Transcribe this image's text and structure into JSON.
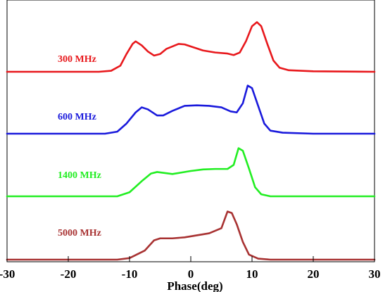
{
  "chart_data": {
    "type": "line",
    "xlabel": "Phase(deg)",
    "ylabel": "",
    "xlim": [
      -30,
      30
    ],
    "grid": false,
    "x_ticks": [
      -30,
      -20,
      -10,
      0,
      10,
      20,
      30
    ],
    "x_tick_labels": [
      "-30",
      "-20",
      "-10",
      "0",
      "10",
      "20",
      "30"
    ],
    "series": [
      {
        "name": "300 MHz",
        "color": "#e8181c",
        "points": [
          [
            -30,
            0.0
          ],
          [
            -15,
            0.0
          ],
          [
            -13,
            0.02
          ],
          [
            -11.5,
            0.12
          ],
          [
            -10.5,
            0.35
          ],
          [
            -9.5,
            0.55
          ],
          [
            -9,
            0.6
          ],
          [
            -8,
            0.52
          ],
          [
            -7,
            0.4
          ],
          [
            -6,
            0.32
          ],
          [
            -5,
            0.35
          ],
          [
            -4,
            0.45
          ],
          [
            -2,
            0.55
          ],
          [
            -1,
            0.54
          ],
          [
            0,
            0.5
          ],
          [
            2,
            0.42
          ],
          [
            4,
            0.38
          ],
          [
            6,
            0.36
          ],
          [
            7,
            0.33
          ],
          [
            8,
            0.38
          ],
          [
            9,
            0.6
          ],
          [
            10,
            0.9
          ],
          [
            10.8,
            0.98
          ],
          [
            11.5,
            0.9
          ],
          [
            12.5,
            0.55
          ],
          [
            13.5,
            0.22
          ],
          [
            14.5,
            0.08
          ],
          [
            16,
            0.03
          ],
          [
            20,
            0.01
          ],
          [
            30,
            0.0
          ]
        ]
      },
      {
        "name": "600 MHz",
        "color": "#1a1adc",
        "points": [
          [
            -30,
            0.0
          ],
          [
            -14,
            0.0
          ],
          [
            -12,
            0.04
          ],
          [
            -10.5,
            0.2
          ],
          [
            -9,
            0.42
          ],
          [
            -8,
            0.52
          ],
          [
            -7,
            0.48
          ],
          [
            -5.5,
            0.36
          ],
          [
            -4.5,
            0.36
          ],
          [
            -3,
            0.45
          ],
          [
            -1,
            0.55
          ],
          [
            1,
            0.56
          ],
          [
            3,
            0.55
          ],
          [
            5,
            0.52
          ],
          [
            6.5,
            0.44
          ],
          [
            7.5,
            0.42
          ],
          [
            8.5,
            0.6
          ],
          [
            9.3,
            0.95
          ],
          [
            10,
            0.9
          ],
          [
            11,
            0.55
          ],
          [
            12,
            0.2
          ],
          [
            13,
            0.06
          ],
          [
            15,
            0.02
          ],
          [
            20,
            0.0
          ],
          [
            30,
            0.0
          ]
        ]
      },
      {
        "name": "1400 MHz",
        "color": "#22ee22",
        "points": [
          [
            -30,
            0.0
          ],
          [
            -12,
            0.0
          ],
          [
            -10,
            0.08
          ],
          [
            -8,
            0.3
          ],
          [
            -6.5,
            0.45
          ],
          [
            -5.5,
            0.48
          ],
          [
            -3,
            0.44
          ],
          [
            0,
            0.5
          ],
          [
            2,
            0.53
          ],
          [
            4,
            0.54
          ],
          [
            6,
            0.54
          ],
          [
            7,
            0.62
          ],
          [
            7.8,
            0.95
          ],
          [
            8.5,
            0.9
          ],
          [
            9.5,
            0.55
          ],
          [
            10.5,
            0.18
          ],
          [
            11.5,
            0.04
          ],
          [
            13,
            0.0
          ],
          [
            30,
            0.0
          ]
        ]
      },
      {
        "name": "5000 MHz",
        "color": "#a83232",
        "points": [
          [
            -30,
            0.0
          ],
          [
            -12,
            0.0
          ],
          [
            -10,
            0.03
          ],
          [
            -7.5,
            0.18
          ],
          [
            -6,
            0.38
          ],
          [
            -5,
            0.42
          ],
          [
            -3,
            0.42
          ],
          [
            -1,
            0.44
          ],
          [
            1,
            0.48
          ],
          [
            3,
            0.52
          ],
          [
            5,
            0.62
          ],
          [
            6,
            0.95
          ],
          [
            6.7,
            0.92
          ],
          [
            7.5,
            0.7
          ],
          [
            8.5,
            0.35
          ],
          [
            9.5,
            0.1
          ],
          [
            11,
            0.02
          ],
          [
            13,
            0.0
          ],
          [
            30,
            0.0
          ]
        ]
      }
    ]
  }
}
